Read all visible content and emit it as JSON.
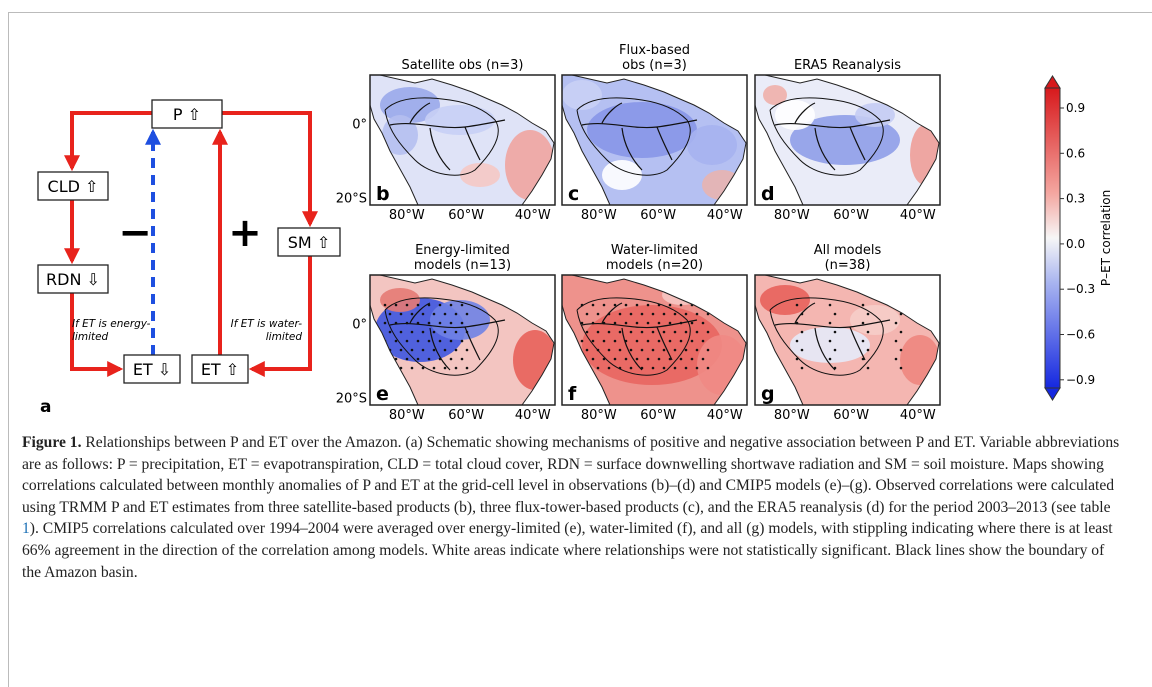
{
  "schematic": {
    "label": "a",
    "nodes": [
      "P ⇧",
      "CLD ⇧",
      "RDN ⇩",
      "ET ⇩",
      "ET ⇧",
      "SM ⇧"
    ],
    "signs": [
      "−",
      "+"
    ],
    "notes": [
      [
        "If ET is energy-",
        "limited"
      ],
      [
        "If ET is water-",
        "limited"
      ]
    ]
  },
  "maps": {
    "panels": [
      {
        "letter": "b",
        "title_lines": [
          "Satellite obs (n=3)"
        ]
      },
      {
        "letter": "c",
        "title_lines": [
          "Flux-based",
          "obs (n=3)"
        ]
      },
      {
        "letter": "d",
        "title_lines": [
          "ERA5 Reanalysis"
        ]
      },
      {
        "letter": "e",
        "title_lines": [
          "Energy-limited",
          "models (n=13)"
        ]
      },
      {
        "letter": "f",
        "title_lines": [
          "Water-limited",
          "models (n=20)"
        ]
      },
      {
        "letter": "g",
        "title_lines": [
          "All models",
          "(n=38)"
        ]
      }
    ],
    "latitude_labels": [
      "0°",
      "20°S"
    ],
    "longitude_labels": [
      "80°W",
      "60°W",
      "40°W"
    ]
  },
  "colorbar": {
    "label": "P–ET correlation",
    "ticks": [
      "0.9",
      "0.6",
      "0.3",
      "0.0",
      "−0.3",
      "−0.6",
      "−0.9"
    ]
  },
  "caption": {
    "label": "Figure 1.",
    "text_before": " Relationships between P and ET over the Amazon. (a) Schematic showing mechanisms of positive and negative association between P and ET. Variable abbreviations are as follows: P = precipitation, ET = evapotranspiration, CLD = total cloud cover, RDN = surface downwelling shortwave radiation and SM = soil moisture. Maps showing correlations calculated between monthly anomalies of P and ET at the grid-cell level in observations (b)–(d) and CMIP5 models (e)–(g). Observed correlations were calculated using TRMM P and ET estimates from three satellite-based products (b), three flux-tower-based products (c), and the ERA5 reanalysis (d) for the period 2003–2013 (see table ",
    "link": "1",
    "text_after": "). CMIP5 correlations calculated over 1994–2004 were averaged over energy-limited (e), water-limited (f), and all (g) models, with stippling indicating where there is at least 66% agreement in the direction of the correlation among models. White areas indicate where relationships were not statistically significant. Black lines show the boundary of the Amazon basin."
  }
}
